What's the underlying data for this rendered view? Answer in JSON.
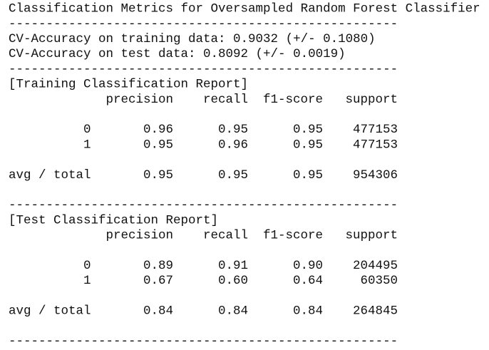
{
  "title": "Classification Metrics for Oversampled Random Forest Classifier",
  "separator": "----------------------------------------------------",
  "cv_lines": [
    "CV-Accuracy on training data: 0.9032 (+/- 0.1080)",
    "CV-Accuracy on test data: 0.8092 (+/- 0.0019)"
  ],
  "reports": [
    {
      "title": "[Training Classification Report]",
      "columns": [
        "precision",
        "recall",
        "f1-score",
        "support"
      ],
      "rows": [
        {
          "label": "0",
          "values": [
            "0.96",
            "0.95",
            "0.95",
            "477153"
          ]
        },
        {
          "label": "1",
          "values": [
            "0.95",
            "0.96",
            "0.95",
            "477153"
          ]
        },
        {
          "label": "avg / total",
          "values": [
            "0.95",
            "0.95",
            "0.95",
            "954306"
          ]
        }
      ]
    },
    {
      "title": "[Test Classification Report]",
      "columns": [
        "precision",
        "recall",
        "f1-score",
        "support"
      ],
      "rows": [
        {
          "label": "0",
          "values": [
            "0.89",
            "0.91",
            "0.90",
            "204495"
          ]
        },
        {
          "label": "1",
          "values": [
            "0.67",
            "0.60",
            "0.64",
            "60350"
          ]
        },
        {
          "label": "avg / total",
          "values": [
            "0.84",
            "0.84",
            "0.84",
            "264845"
          ]
        }
      ]
    }
  ]
}
